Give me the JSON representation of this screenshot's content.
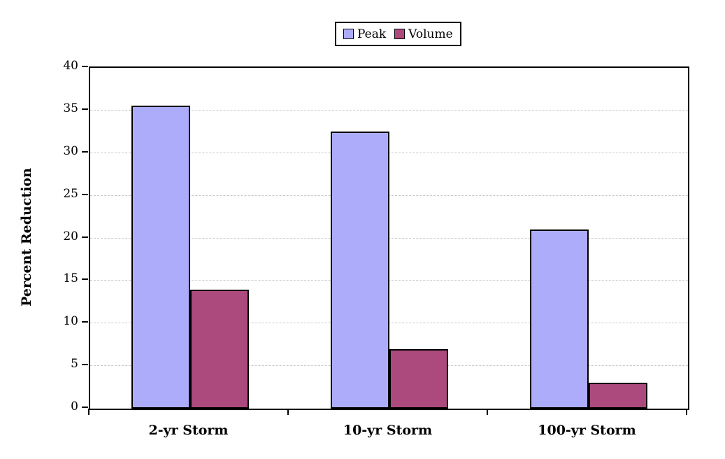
{
  "chart_data": {
    "type": "bar",
    "title": "",
    "xlabel": "",
    "ylabel": "Percent Reduction",
    "categories": [
      "2-yr Storm",
      "10-yr Storm",
      "100-yr Storm"
    ],
    "series": [
      {
        "name": "Peak",
        "values": [
          35.6,
          32.5,
          21
        ],
        "color": "#ACACFA"
      },
      {
        "name": "Volume",
        "values": [
          14,
          7,
          3
        ],
        "color": "#AC4A7D"
      }
    ],
    "ylim": [
      0,
      40
    ],
    "ytick_step": 5,
    "grid": "horizontal-dashed",
    "legend_position": "top-center"
  },
  "colors": {
    "frame": "#000000",
    "gridline": "#C8C8C8",
    "background": "#FFFFFF"
  }
}
